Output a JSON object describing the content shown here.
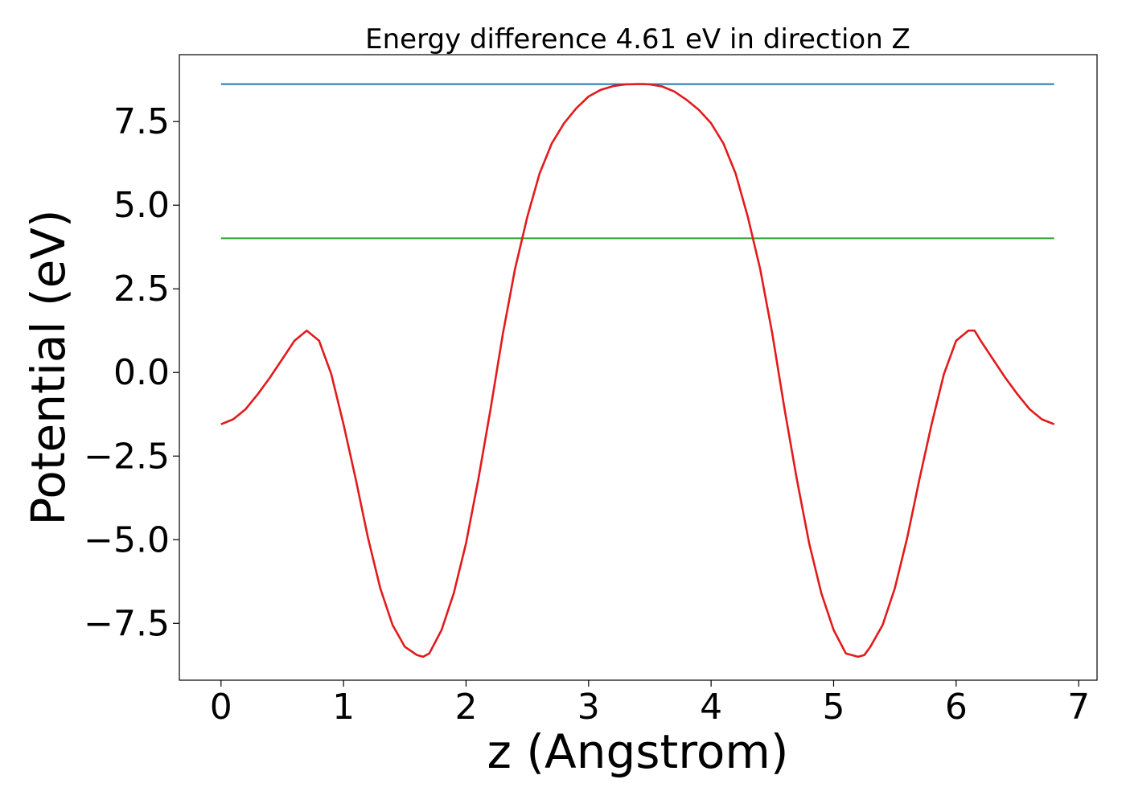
{
  "chart_data": {
    "type": "line",
    "title": "Energy difference 4.61 eV in direction Z",
    "xlabel": "z (Angstrom)",
    "ylabel": "Potential (eV)",
    "xlim": [
      -0.34,
      7.15
    ],
    "ylim": [
      -9.2,
      9.5
    ],
    "grid": false,
    "x_ticks": [
      0,
      1,
      2,
      3,
      4,
      5,
      6,
      7
    ],
    "x_tick_labels": [
      "0",
      "1",
      "2",
      "3",
      "4",
      "5",
      "6",
      "7"
    ],
    "y_ticks": [
      7.5,
      5.0,
      2.5,
      0.0,
      -2.5,
      -5.0,
      -7.5
    ],
    "y_tick_labels": [
      "7.5",
      "5.0",
      "2.5",
      "0.0",
      "−2.5",
      "−5.0",
      "−7.5"
    ],
    "series": [
      {
        "color": "#1f77b4",
        "x": [
          0,
          6.8
        ],
        "y": [
          8.62,
          8.62
        ]
      },
      {
        "color": "#2ca02c",
        "x": [
          0,
          6.8
        ],
        "y": [
          4.01,
          4.01
        ]
      },
      {
        "color": "#e31a1c",
        "x": [
          0,
          0.1,
          0.2,
          0.3,
          0.4,
          0.5,
          0.6,
          0.7,
          0.8,
          0.9,
          1.0,
          1.1,
          1.2,
          1.3,
          1.4,
          1.5,
          1.6,
          1.65,
          1.7,
          1.8,
          1.9,
          2.0,
          2.1,
          2.2,
          2.3,
          2.4,
          2.5,
          2.6,
          2.7,
          2.8,
          2.9,
          3.0,
          3.1,
          3.2,
          3.3,
          3.4,
          3.45,
          3.5,
          3.6,
          3.7,
          3.8,
          3.9,
          4.0,
          4.1,
          4.2,
          4.3,
          4.4,
          4.5,
          4.6,
          4.7,
          4.8,
          4.9,
          5.0,
          5.1,
          5.2,
          5.25,
          5.3,
          5.4,
          5.5,
          5.6,
          5.7,
          5.8,
          5.9,
          6.0,
          6.1,
          6.15,
          6.2,
          6.3,
          6.4,
          6.5,
          6.6,
          6.7,
          6.8
        ],
        "y": [
          -1.55,
          -1.4,
          -1.1,
          -0.65,
          -0.15,
          0.4,
          0.95,
          1.25,
          0.95,
          -0.05,
          -1.55,
          -3.2,
          -4.95,
          -6.45,
          -7.55,
          -8.2,
          -8.45,
          -8.5,
          -8.4,
          -7.7,
          -6.6,
          -5.1,
          -3.2,
          -1.1,
          1.15,
          3.1,
          4.65,
          5.95,
          6.85,
          7.45,
          7.9,
          8.25,
          8.45,
          8.56,
          8.61,
          8.62,
          8.62,
          8.61,
          8.55,
          8.4,
          8.15,
          7.85,
          7.45,
          6.85,
          5.95,
          4.65,
          3.1,
          1.15,
          -1.1,
          -3.2,
          -5.1,
          -6.6,
          -7.7,
          -8.4,
          -8.5,
          -8.45,
          -8.2,
          -7.55,
          -6.45,
          -4.95,
          -3.2,
          -1.55,
          -0.05,
          0.95,
          1.25,
          1.25,
          0.95,
          0.4,
          -0.15,
          -0.65,
          -1.1,
          -1.4,
          -1.55
        ]
      }
    ]
  }
}
